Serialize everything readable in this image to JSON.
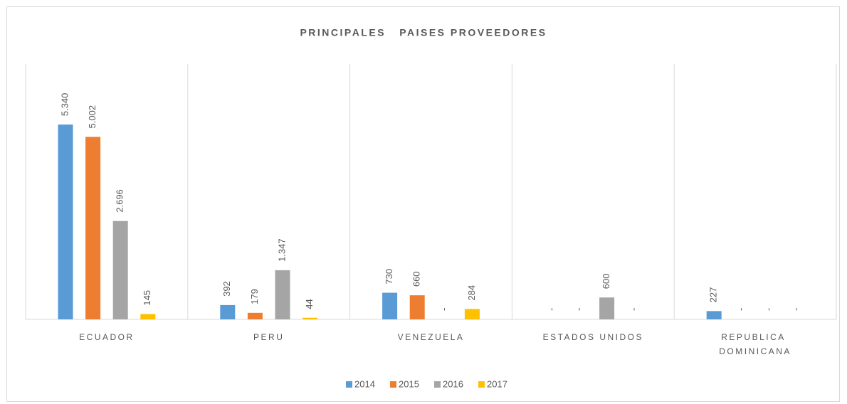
{
  "chart_data": {
    "type": "bar",
    "title": "PRINCIPALES   PAISES PROVEEDORES",
    "categories": [
      "ECUADOR",
      "PERU",
      "VENEZUELA",
      "ESTADOS UNIDOS",
      "REPUBLICA DOMINICANA"
    ],
    "series": [
      {
        "name": "2014",
        "color": "#5b9bd5",
        "values": [
          5340,
          392,
          730,
          0,
          227
        ],
        "value_labels": [
          "5.340",
          "392",
          "730",
          "-",
          "227"
        ]
      },
      {
        "name": "2015",
        "color": "#ed7d31",
        "values": [
          5002,
          179,
          660,
          0,
          0
        ],
        "value_labels": [
          "5.002",
          "179",
          "660",
          "-",
          "-"
        ]
      },
      {
        "name": "2016",
        "color": "#a5a5a5",
        "values": [
          2696,
          1347,
          0,
          600,
          0
        ],
        "value_labels": [
          "2.696",
          "1.347",
          "-",
          "600",
          "-"
        ]
      },
      {
        "name": "2017",
        "color": "#ffc000",
        "values": [
          145,
          44,
          284,
          0,
          0
        ],
        "value_labels": [
          "145",
          "44",
          "284",
          "-",
          "-"
        ]
      }
    ],
    "ylim": [
      0,
      7000
    ],
    "legend": "bottom"
  }
}
